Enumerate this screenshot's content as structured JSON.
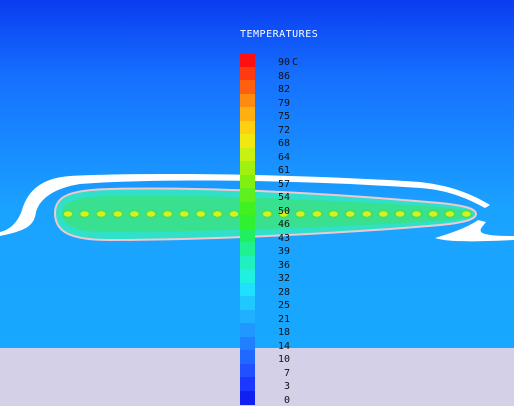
{
  "window": {
    "title": "TEMPERATURES"
  },
  "colors": {
    "background_top": "#0a3ff0",
    "background_mid": "#1aa4ff",
    "floor": "#d4d0e8",
    "plume_core": "#39e65a",
    "plume_edge": "#8fe8ff",
    "isotherm": "#e8c8d0"
  },
  "legend": {
    "title": "TEMPERATURES",
    "unit_label": "C",
    "ticks": [
      "90",
      "86",
      "82",
      "79",
      "75",
      "72",
      "68",
      "64",
      "61",
      "57",
      "54",
      "50",
      "46",
      "43",
      "39",
      "36",
      "32",
      "28",
      "25",
      "21",
      "18",
      "14",
      "10",
      "7",
      "3",
      "0"
    ],
    "colors": [
      "#ff1010",
      "#ff3a10",
      "#ff6010",
      "#ff8a10",
      "#ffb010",
      "#ffd010",
      "#f0e810",
      "#c8f010",
      "#a0f010",
      "#80f010",
      "#60f020",
      "#40f020",
      "#30f030",
      "#20f060",
      "#20f090",
      "#20f0c0",
      "#20f0e0",
      "#20e0ff",
      "#20c8ff",
      "#20b0ff",
      "#2098ff",
      "#2080ff",
      "#2068ff",
      "#2050ff",
      "#1a38ff",
      "#1020f0"
    ]
  }
}
